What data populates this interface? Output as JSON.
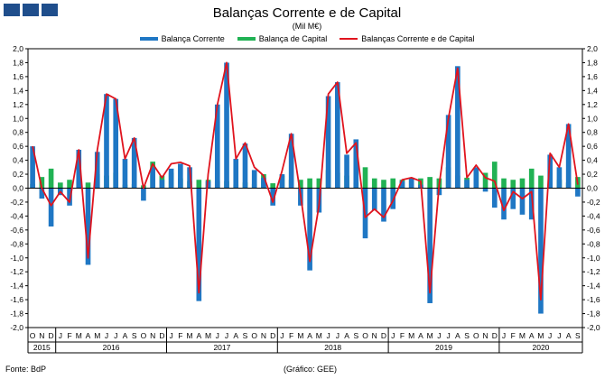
{
  "header": {
    "title": "Balanças Corrente e de Capital",
    "subtitle": "(Mil M€)"
  },
  "footer": {
    "source": "Fonte: BdP",
    "credit": "(Gráfico: GEE)"
  },
  "colors": {
    "current": "#1f77c4",
    "capital": "#21b254",
    "combined": "#e0141e",
    "logo": "#1f4e8c"
  },
  "chart_data": {
    "type": "bar",
    "title": "Balanças Corrente e de Capital",
    "subtitle": "(Mil M€)",
    "ylim": [
      -2.0,
      2.0
    ],
    "y_ticks": [
      "2,0",
      "1,8",
      "1,6",
      "1,4",
      "1,2",
      "1,0",
      "0,8",
      "0,6",
      "0,4",
      "0,2",
      "0,0",
      "-0,2",
      "-0,4",
      "-0,6",
      "-0,8",
      "-1,0",
      "-1,2",
      "-1,4",
      "-1,6",
      "-1,8",
      "-2,0"
    ],
    "grid": false,
    "legend_position": "top",
    "categories": [
      "O",
      "N",
      "D",
      "J",
      "F",
      "M",
      "A",
      "M",
      "J",
      "J",
      "A",
      "S",
      "O",
      "N",
      "D",
      "J",
      "F",
      "M",
      "A",
      "M",
      "J",
      "J",
      "A",
      "S",
      "O",
      "N",
      "D",
      "J",
      "F",
      "M",
      "A",
      "M",
      "J",
      "J",
      "A",
      "S",
      "O",
      "N",
      "D",
      "J",
      "F",
      "M",
      "A",
      "M",
      "J",
      "J",
      "A",
      "S",
      "O",
      "N",
      "D",
      "J",
      "F",
      "M",
      "A",
      "M",
      "J",
      "J",
      "A",
      "S"
    ],
    "year_labels": [
      {
        "label": "2015",
        "start": 0,
        "end": 2
      },
      {
        "label": "2016",
        "start": 3,
        "end": 14
      },
      {
        "label": "2017",
        "start": 15,
        "end": 26
      },
      {
        "label": "2018",
        "start": 27,
        "end": 38
      },
      {
        "label": "2019",
        "start": 39,
        "end": 50
      },
      {
        "label": "2020",
        "start": 51,
        "end": 59
      }
    ],
    "series": [
      {
        "name": "Balança Corrente",
        "kind": "bar",
        "values": [
          0.6,
          -0.15,
          -0.55,
          -0.1,
          -0.25,
          0.55,
          -1.1,
          0.52,
          1.35,
          1.28,
          0.42,
          0.72,
          -0.18,
          0.3,
          0.12,
          0.28,
          0.35,
          0.3,
          -1.62,
          0.1,
          1.2,
          1.8,
          0.42,
          0.64,
          0.26,
          0.15,
          -0.25,
          0.2,
          0.78,
          -0.25,
          -1.18,
          -0.35,
          1.32,
          1.52,
          0.48,
          0.7,
          -0.72,
          -0.32,
          -0.48,
          -0.3,
          0.1,
          0.15,
          0.05,
          -1.65,
          -0.1,
          1.05,
          1.75,
          0.12,
          0.3,
          -0.05,
          -0.28,
          -0.45,
          -0.3,
          -0.38,
          -0.45,
          -1.8,
          0.48,
          0.3,
          0.92,
          -0.12
        ],
        "values_note": ""
      },
      {
        "name": "Balança de Capital",
        "kind": "bar",
        "values": [
          0.06,
          0.16,
          0.28,
          0.08,
          0.12,
          0.1,
          0.08,
          0.2,
          0.18,
          0.22,
          0.05,
          0.06,
          0.04,
          0.38,
          0.18,
          0.22,
          0.14,
          0.1,
          0.12,
          0.12,
          0.1,
          0.1,
          0.05,
          0.08,
          0.06,
          0.2,
          0.07,
          0.18,
          0.12,
          0.12,
          0.14,
          0.14,
          0.26,
          0.22,
          0.18,
          0.08,
          0.3,
          0.14,
          0.12,
          0.14,
          0.12,
          0.14,
          0.14,
          0.16,
          0.14,
          0.3,
          0.18,
          0.15,
          0.24,
          0.22,
          0.38,
          0.14,
          0.12,
          0.14,
          0.28,
          0.18,
          0.06,
          0.12,
          0.08,
          0.16
        ]
      },
      {
        "name": "Balanças Corrente e de Capital",
        "kind": "line",
        "values": [
          0.6,
          0.0,
          -0.25,
          -0.05,
          -0.2,
          0.55,
          -1.0,
          0.55,
          1.35,
          1.28,
          0.42,
          0.72,
          0.0,
          0.35,
          0.15,
          0.35,
          0.37,
          0.32,
          -1.5,
          0.2,
          1.2,
          1.8,
          0.42,
          0.65,
          0.3,
          0.18,
          -0.2,
          0.25,
          0.78,
          -0.1,
          -1.05,
          -0.25,
          1.35,
          1.52,
          0.5,
          0.65,
          -0.42,
          -0.3,
          -0.42,
          -0.18,
          0.12,
          0.15,
          0.1,
          -1.5,
          0.05,
          1.0,
          1.72,
          0.15,
          0.33,
          0.15,
          0.1,
          -0.32,
          -0.05,
          -0.15,
          -0.05,
          -1.6,
          0.5,
          0.3,
          0.92,
          0.05
        ]
      }
    ]
  }
}
